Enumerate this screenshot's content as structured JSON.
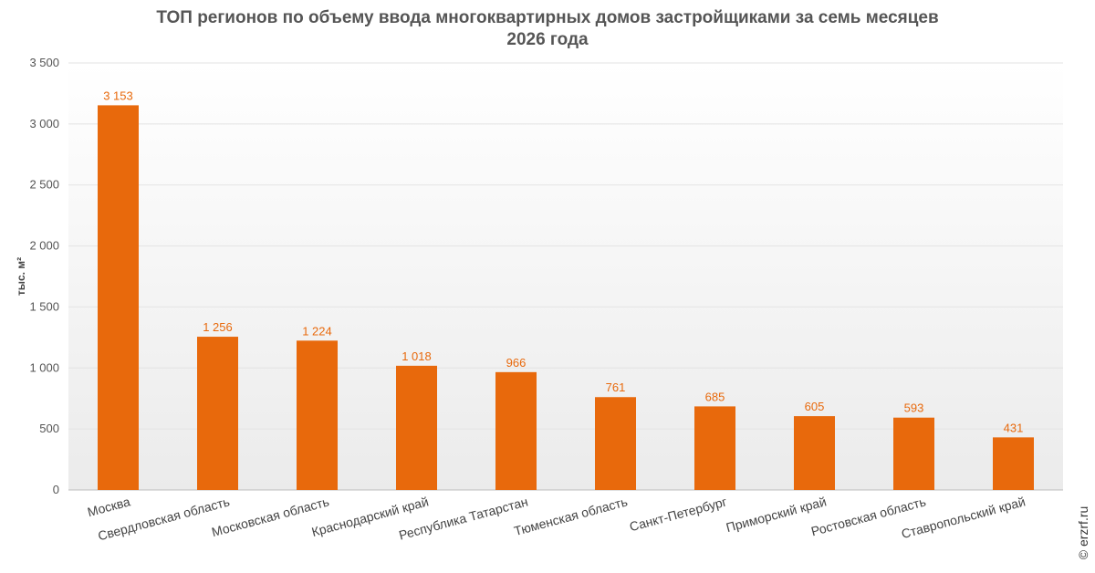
{
  "chart_data": {
    "type": "bar",
    "title": "ТОП регионов по объему ввода многоквартирных домов застройщиками за семь месяцев 2026 года",
    "ylabel": "тыс. м²",
    "xlabel": "",
    "ylim": [
      0,
      3500
    ],
    "yticks": [
      0,
      500,
      1000,
      1500,
      2000,
      2500,
      3000,
      3500
    ],
    "ytick_labels": [
      "0",
      "500",
      "1 000",
      "1 500",
      "2 000",
      "2 500",
      "3 000",
      "3 500"
    ],
    "categories": [
      "Москва",
      "Свердловская область",
      "Московская область",
      "Краснодарский край",
      "Республика Татарстан",
      "Тюменская область",
      "Санкт-Петербург",
      "Приморский край",
      "Ростовская область",
      "Ставропольский край"
    ],
    "values": [
      3153,
      1256,
      1224,
      1018,
      966,
      761,
      685,
      605,
      593,
      431
    ],
    "value_labels": [
      "3 153",
      "1 256",
      "1 224",
      "1 018",
      "966",
      "761",
      "685",
      "605",
      "593",
      "431"
    ],
    "bar_color": "#E8690C",
    "grid": true
  },
  "credit": "© erzrf.ru"
}
